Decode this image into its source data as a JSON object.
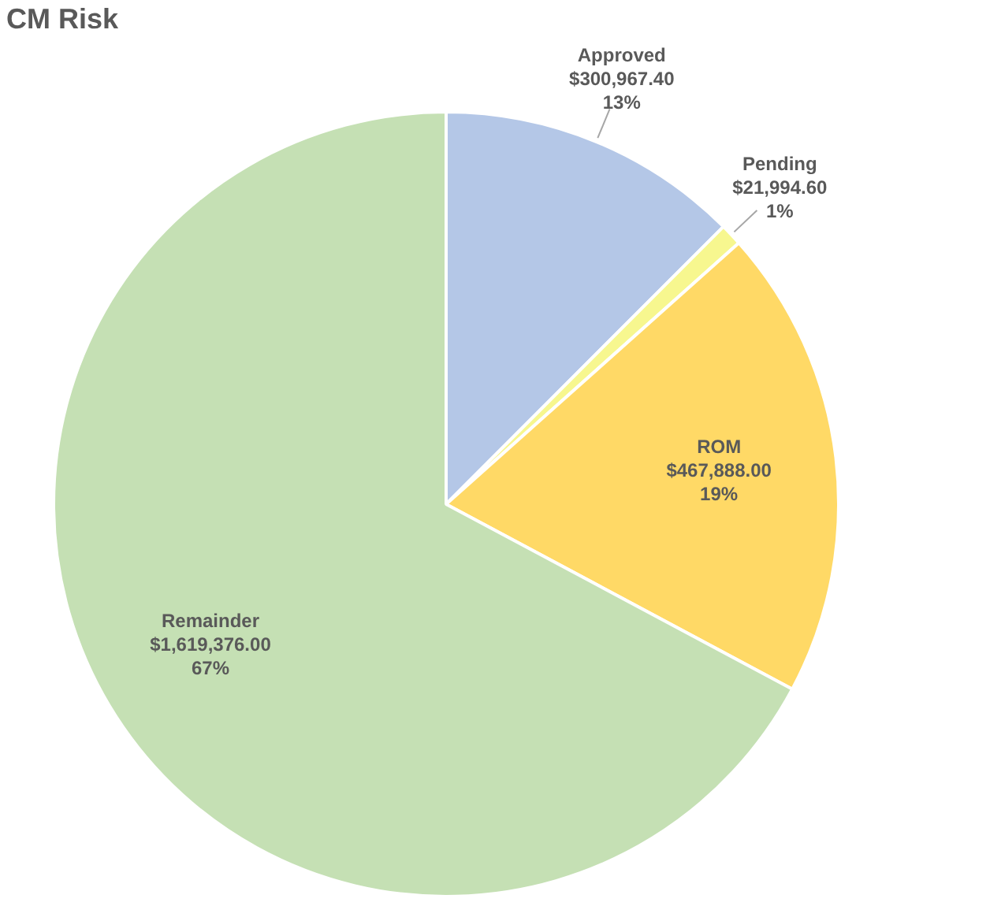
{
  "chart_data": {
    "type": "pie",
    "title": "CM Risk",
    "categories": [
      "Approved",
      "Pending",
      "ROM",
      "Remainder"
    ],
    "values": [
      300967.4,
      21994.6,
      467888.0,
      1619376.0
    ],
    "colors": [
      "#b4c7e7",
      "#f7f78f",
      "#ffd966",
      "#c5e0b4"
    ],
    "value_labels": [
      "$300,967.40\n13%",
      "$21,994.60\n1%",
      "$467,888.00\n19%",
      "$1,619,376.00\n67%"
    ],
    "legend": false
  }
}
